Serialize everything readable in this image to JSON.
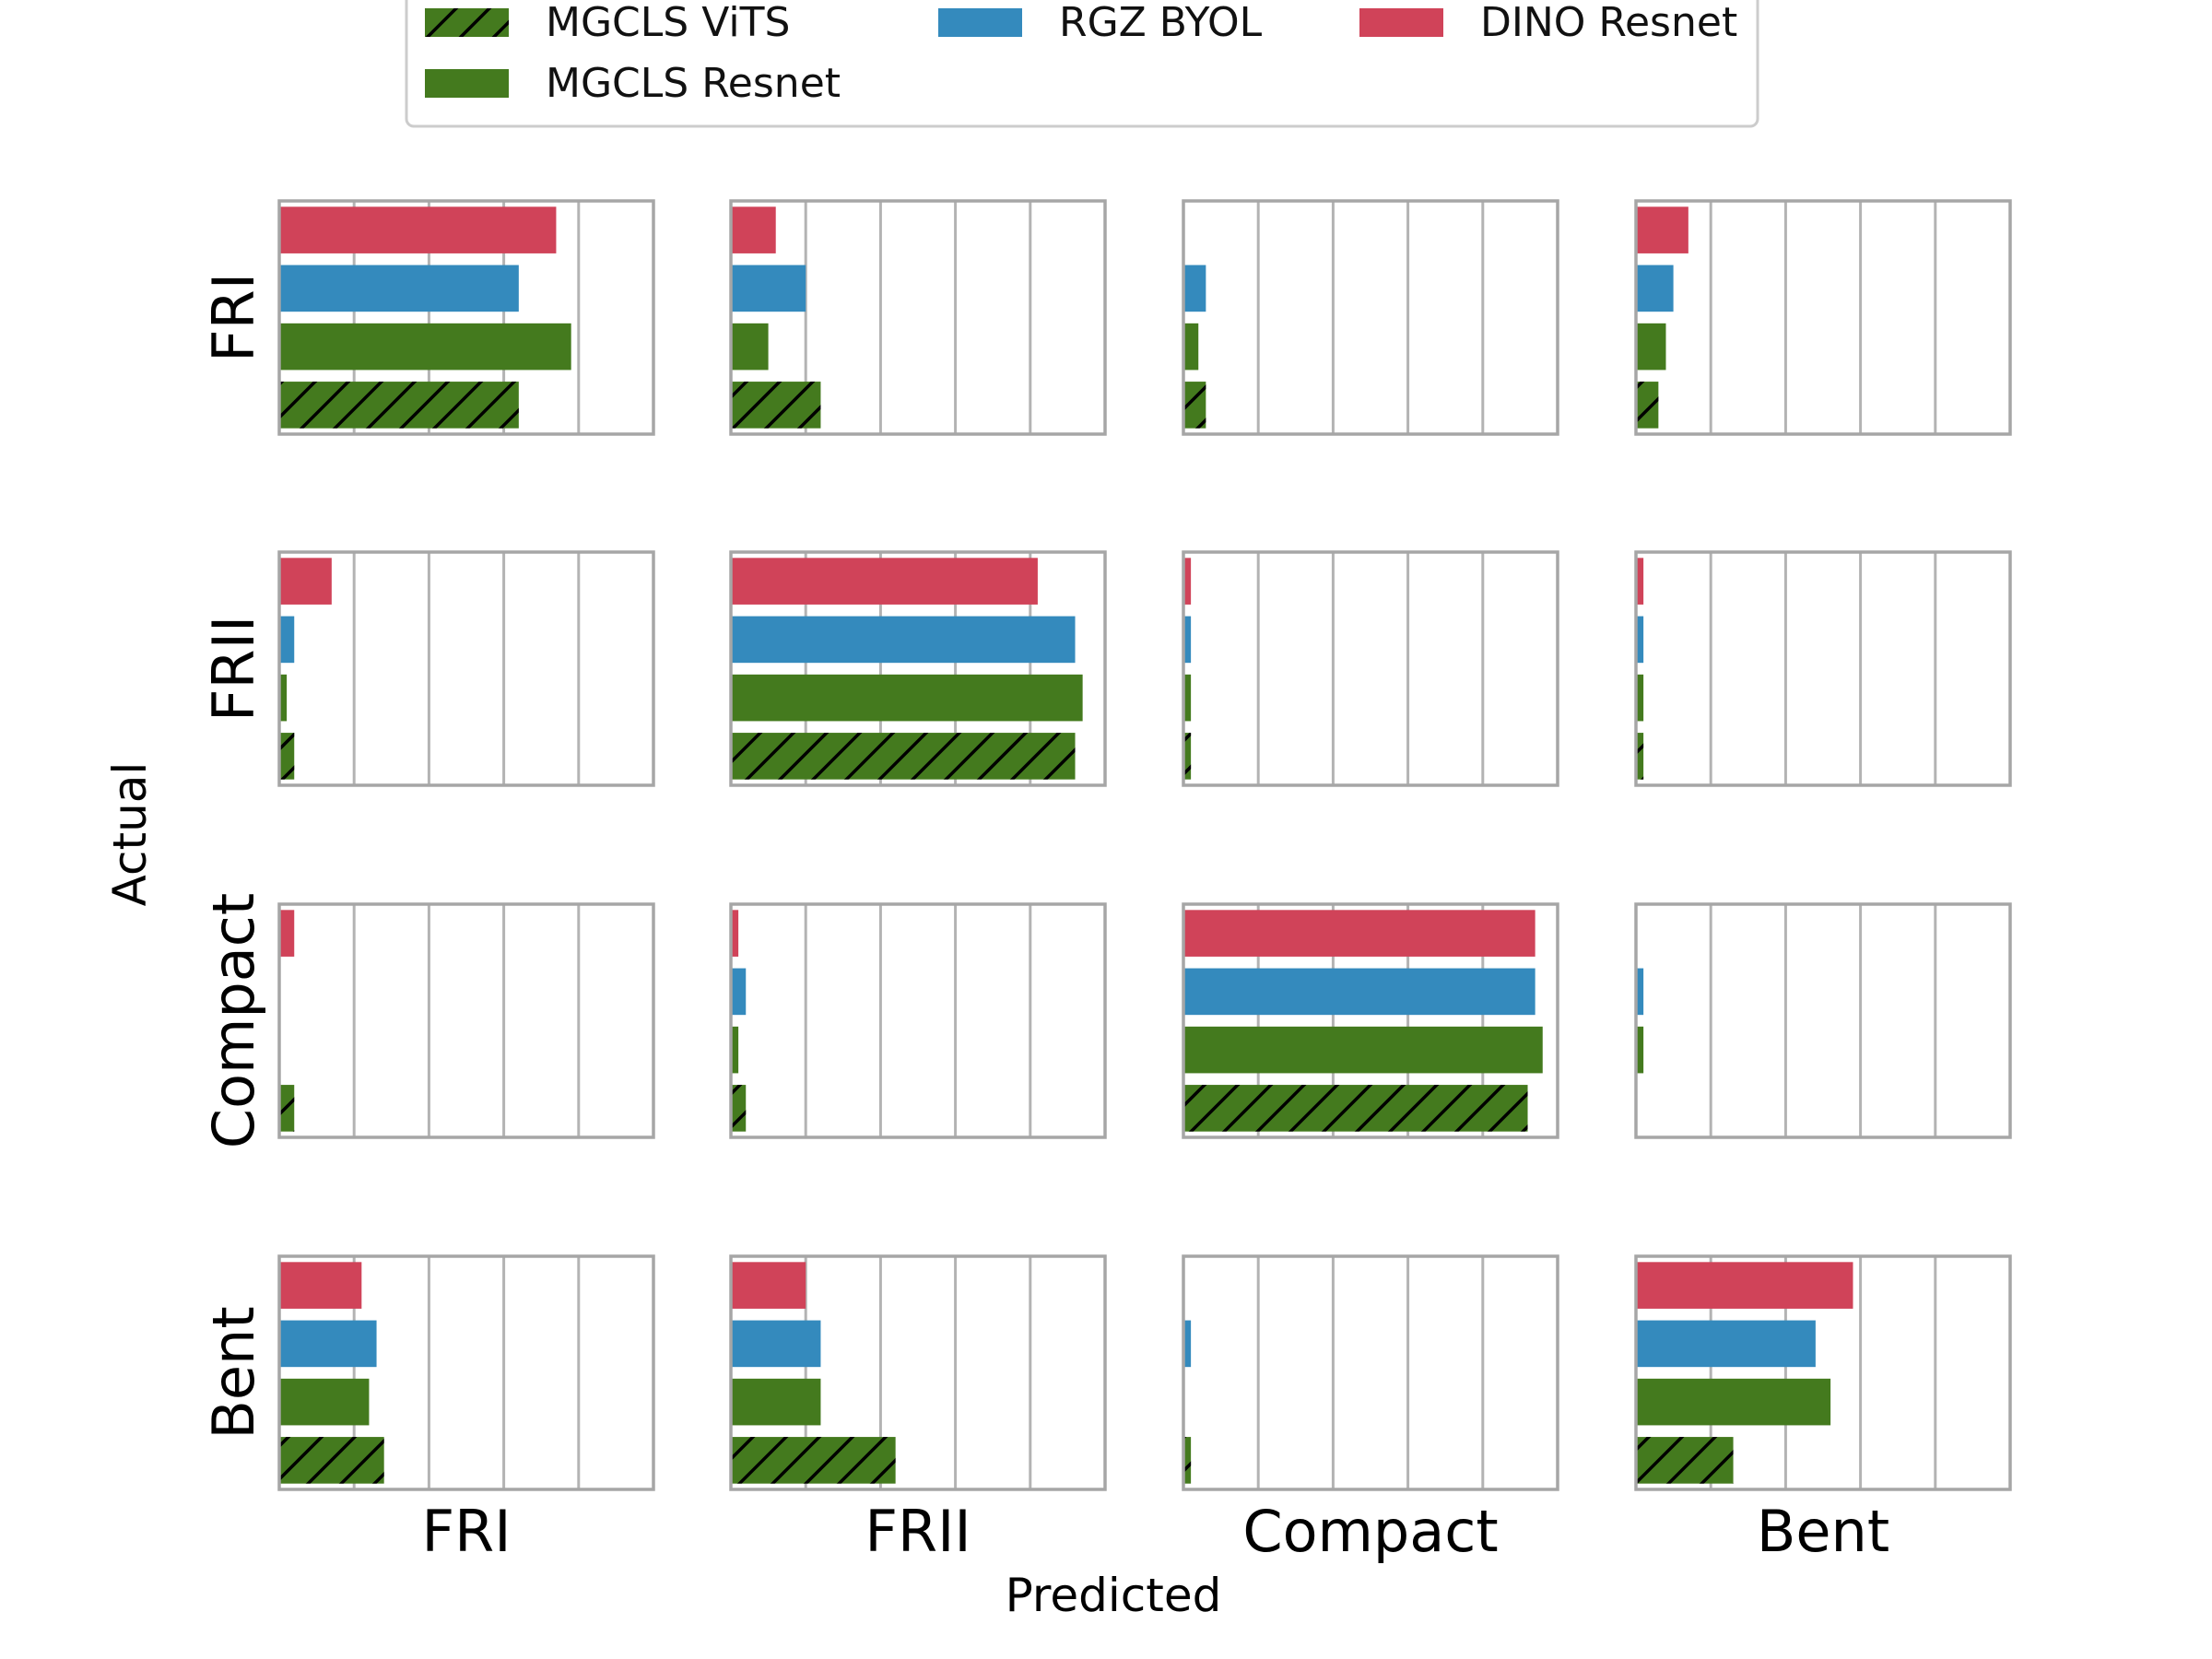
{
  "chart_data": {
    "type": "bar",
    "orientation": "horizontal",
    "layout": "confusion-matrix-grid",
    "xlabel": "Predicted",
    "ylabel": "Actual",
    "classes": [
      "FRI",
      "FRII",
      "Compact",
      "Bent"
    ],
    "xlim": [
      0,
      1
    ],
    "grid": true,
    "legend_position": "top-center",
    "series": [
      {
        "name": "MGCLS ViTS",
        "color": "#447a1e",
        "hatch": true
      },
      {
        "name": "MGCLS Resnet",
        "color": "#447a1e",
        "hatch": false
      },
      {
        "name": "RGZ BYOL",
        "color": "#348abd",
        "hatch": false
      },
      {
        "name": "DINO Resnet",
        "color": "#d04359",
        "hatch": false
      }
    ],
    "bar_order_top_to_bottom": [
      "DINO Resnet",
      "RGZ BYOL",
      "MGCLS Resnet",
      "MGCLS ViTS"
    ],
    "values": {
      "FRI": {
        "FRI": {
          "DINO Resnet": 0.74,
          "RGZ BYOL": 0.64,
          "MGCLS Resnet": 0.78,
          "MGCLS ViTS": 0.64
        },
        "FRII": {
          "DINO Resnet": 0.12,
          "RGZ BYOL": 0.2,
          "MGCLS Resnet": 0.1,
          "MGCLS ViTS": 0.24
        },
        "Compact": {
          "DINO Resnet": 0.0,
          "RGZ BYOL": 0.06,
          "MGCLS Resnet": 0.04,
          "MGCLS ViTS": 0.06
        },
        "Bent": {
          "DINO Resnet": 0.14,
          "RGZ BYOL": 0.1,
          "MGCLS Resnet": 0.08,
          "MGCLS ViTS": 0.06
        }
      },
      "FRII": {
        "FRI": {
          "DINO Resnet": 0.14,
          "RGZ BYOL": 0.04,
          "MGCLS Resnet": 0.02,
          "MGCLS ViTS": 0.04
        },
        "FRII": {
          "DINO Resnet": 0.82,
          "RGZ BYOL": 0.92,
          "MGCLS Resnet": 0.94,
          "MGCLS ViTS": 0.92
        },
        "Compact": {
          "DINO Resnet": 0.02,
          "RGZ BYOL": 0.02,
          "MGCLS Resnet": 0.02,
          "MGCLS ViTS": 0.02
        },
        "Bent": {
          "DINO Resnet": 0.02,
          "RGZ BYOL": 0.02,
          "MGCLS Resnet": 0.02,
          "MGCLS ViTS": 0.02
        }
      },
      "Compact": {
        "FRI": {
          "DINO Resnet": 0.04,
          "RGZ BYOL": 0.0,
          "MGCLS Resnet": 0.0,
          "MGCLS ViTS": 0.04
        },
        "FRII": {
          "DINO Resnet": 0.02,
          "RGZ BYOL": 0.04,
          "MGCLS Resnet": 0.02,
          "MGCLS ViTS": 0.04
        },
        "Compact": {
          "DINO Resnet": 0.94,
          "RGZ BYOL": 0.94,
          "MGCLS Resnet": 0.96,
          "MGCLS ViTS": 0.92
        },
        "Bent": {
          "DINO Resnet": 0.0,
          "RGZ BYOL": 0.02,
          "MGCLS Resnet": 0.02,
          "MGCLS ViTS": 0.0
        }
      },
      "Bent": {
        "FRI": {
          "DINO Resnet": 0.22,
          "RGZ BYOL": 0.26,
          "MGCLS Resnet": 0.24,
          "MGCLS ViTS": 0.28
        },
        "FRII": {
          "DINO Resnet": 0.2,
          "RGZ BYOL": 0.24,
          "MGCLS Resnet": 0.24,
          "MGCLS ViTS": 0.44
        },
        "Compact": {
          "DINO Resnet": 0.0,
          "RGZ BYOL": 0.02,
          "MGCLS Resnet": 0.0,
          "MGCLS ViTS": 0.02
        },
        "Bent": {
          "DINO Resnet": 0.58,
          "RGZ BYOL": 0.48,
          "MGCLS Resnet": 0.52,
          "MGCLS ViTS": 0.26
        }
      }
    }
  }
}
